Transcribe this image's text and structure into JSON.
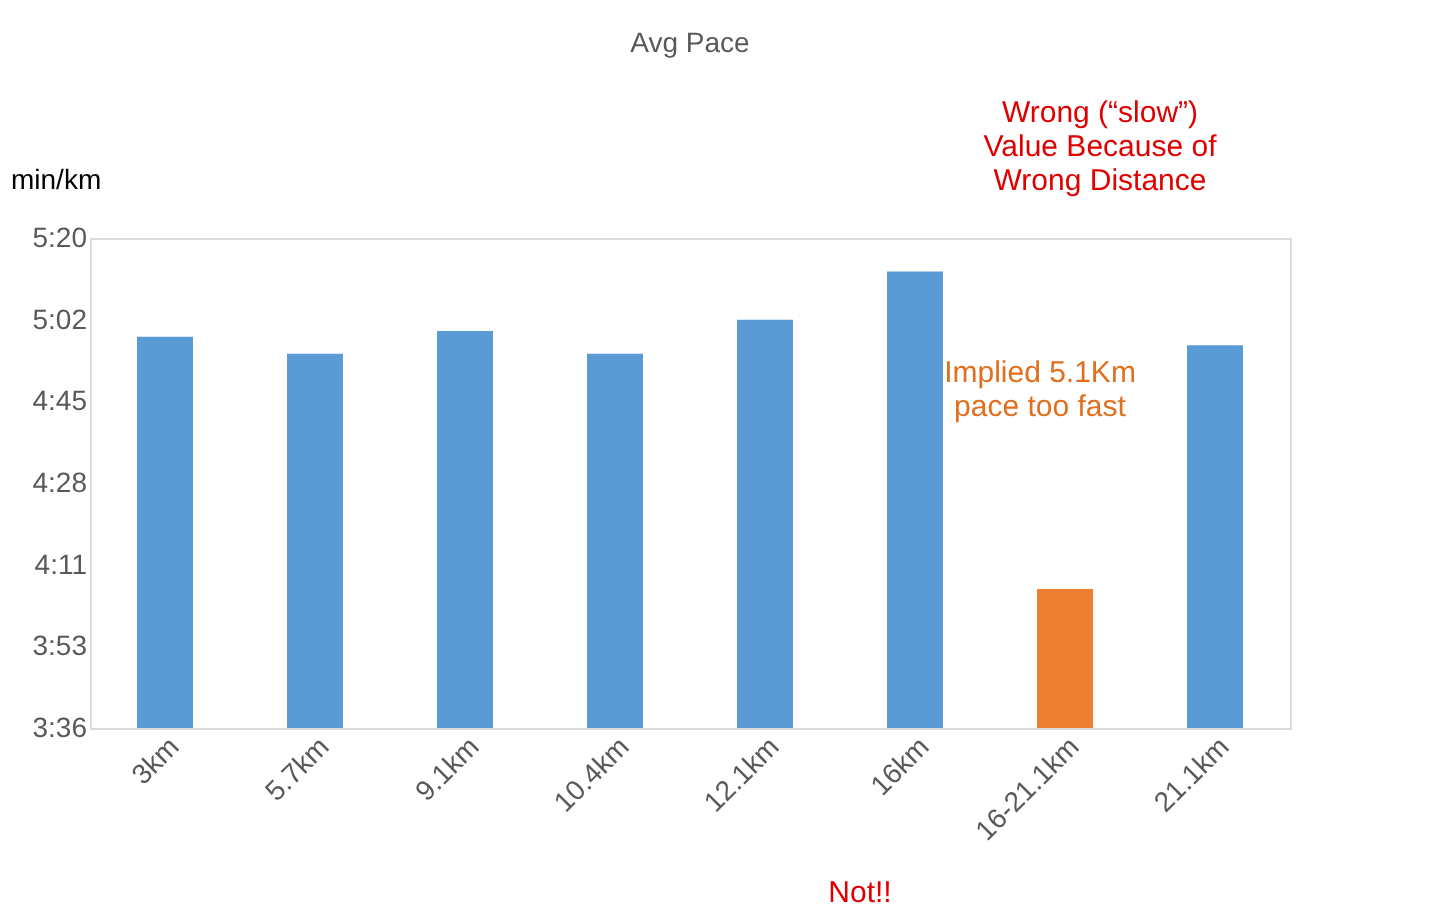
{
  "chart_data": {
    "type": "bar",
    "title": "Avg Pace",
    "ylabel": "min/km",
    "categories": [
      "3km",
      "5.7km",
      "9.1km",
      "10.4km",
      "12.1km",
      "16km",
      "16-21.1km",
      "21.1km"
    ],
    "values": [
      4.98,
      4.92,
      5.0,
      4.92,
      5.04,
      5.21,
      4.09,
      4.95
    ],
    "colors": [
      "#5b9bd5",
      "#5b9bd5",
      "#5b9bd5",
      "#5b9bd5",
      "#5b9bd5",
      "#5b9bd5",
      "#ed7d31",
      "#5b9bd5"
    ],
    "ylim": [
      3.6,
      5.328
    ],
    "yticks": [
      {
        "value": 3.6,
        "label": "3:36"
      },
      {
        "value": 3.888,
        "label": "3:53"
      },
      {
        "value": 4.176,
        "label": "4:11"
      },
      {
        "value": 4.464,
        "label": "4:28"
      },
      {
        "value": 4.752,
        "label": "4:45"
      },
      {
        "value": 5.04,
        "label": "5:02"
      },
      {
        "value": 5.328,
        "label": "5:20"
      }
    ],
    "annotations": [
      "Wrong (“slow”)\nValue Because of\nWrong Distance",
      "Implied 5.1Km\npace too fast",
      "Not!!"
    ],
    "grid": false
  }
}
